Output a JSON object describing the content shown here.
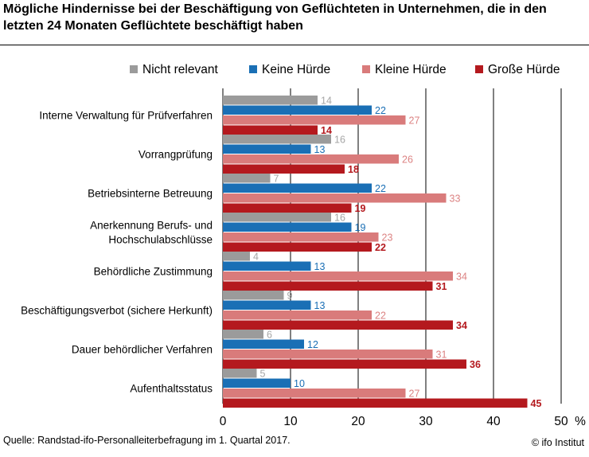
{
  "title": "Mögliche Hindernisse bei der Beschäftigung von Geflüchteten in Unternehmen, die in den letzten 24 Monaten Geflüchtete beschäftigt haben",
  "source": "Quelle: Randstad-ifo-Personalleiterbefragung im 1. Quartal 2017.",
  "copyright": "© ifo Institut",
  "chart_data": {
    "type": "bar",
    "orientation": "horizontal",
    "title": "Mögliche Hindernisse bei der Beschäftigung von Geflüchteten in Unternehmen, die in den letzten 24 Monaten Geflüchtete beschäftigt haben",
    "categories": [
      "Interne Verwaltung für Prüfverfahren",
      "Vorrangprüfung",
      "Betriebsinterne Betreuung",
      "Anerkennung Berufs- und\nHochschulabschlüsse",
      "Behördliche Zustimmung",
      "Beschäftigungsverbot (sichere Herkunft)",
      "Dauer behördlicher Verfahren",
      "Aufenthaltsstatus"
    ],
    "series": [
      {
        "name": "Nicht relevant",
        "color": "#9b9b9b",
        "label_color": "#a6a6a6",
        "values": [
          14,
          16,
          7,
          16,
          4,
          9,
          6,
          5
        ]
      },
      {
        "name": "Keine Hürde",
        "color": "#1a6fb5",
        "label_color": "#1a6fb5",
        "values": [
          22,
          13,
          22,
          19,
          13,
          13,
          12,
          10
        ]
      },
      {
        "name": "Kleine Hürde",
        "color": "#d97b7b",
        "label_color": "#dc8383",
        "values": [
          27,
          26,
          33,
          23,
          34,
          22,
          31,
          27
        ]
      },
      {
        "name": "Große Hürde",
        "color": "#b4191e",
        "label_color": "#b4191e",
        "values": [
          14,
          18,
          19,
          22,
          31,
          34,
          36,
          45
        ]
      }
    ],
    "xlim": [
      0,
      50
    ],
    "xticks": [
      0,
      10,
      20,
      30,
      40,
      50
    ],
    "xunit": "%",
    "grid": "vertical",
    "legend": "top"
  }
}
